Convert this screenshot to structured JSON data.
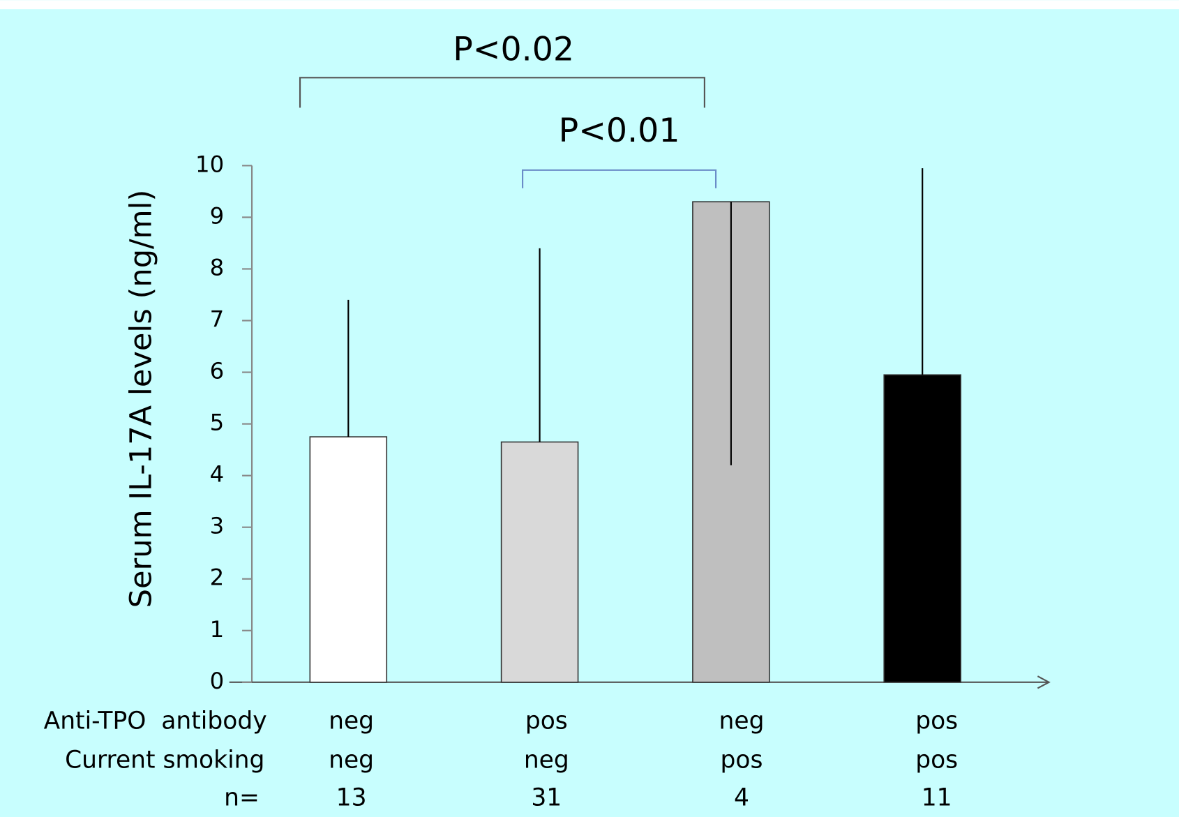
{
  "chart_data": {
    "type": "bar",
    "y_label": "Serum IL-17A levels (ng/ml)",
    "categories": [
      null,
      null,
      null,
      null
    ],
    "values": [
      4.75,
      4.65,
      9.3,
      5.95
    ],
    "errors": [
      2.65,
      3.75,
      5.1,
      4.0
    ],
    "error_direction": [
      "up",
      "up",
      "down",
      "up"
    ],
    "colors": [
      "#ffffff",
      "#d9d9d9",
      "#bfbfbf",
      "#000000"
    ],
    "ylim": [
      0,
      10
    ],
    "yticks": [
      0,
      1,
      2,
      3,
      4,
      5,
      6,
      7,
      8,
      9,
      10
    ],
    "category_rows": [
      {
        "label": "Anti-TPO  antibody",
        "values": [
          "neg",
          "pos",
          "neg",
          "pos"
        ]
      },
      {
        "label": "Current smoking",
        "values": [
          "neg",
          "neg",
          "pos",
          "pos"
        ]
      },
      {
        "label": "n=",
        "values": [
          13,
          31,
          4,
          11
        ]
      }
    ],
    "annotations": [
      {
        "text": "P<0.02",
        "from": 0,
        "to": 2
      },
      {
        "text": "P<0.01",
        "from": 1,
        "to": 2
      }
    ]
  }
}
